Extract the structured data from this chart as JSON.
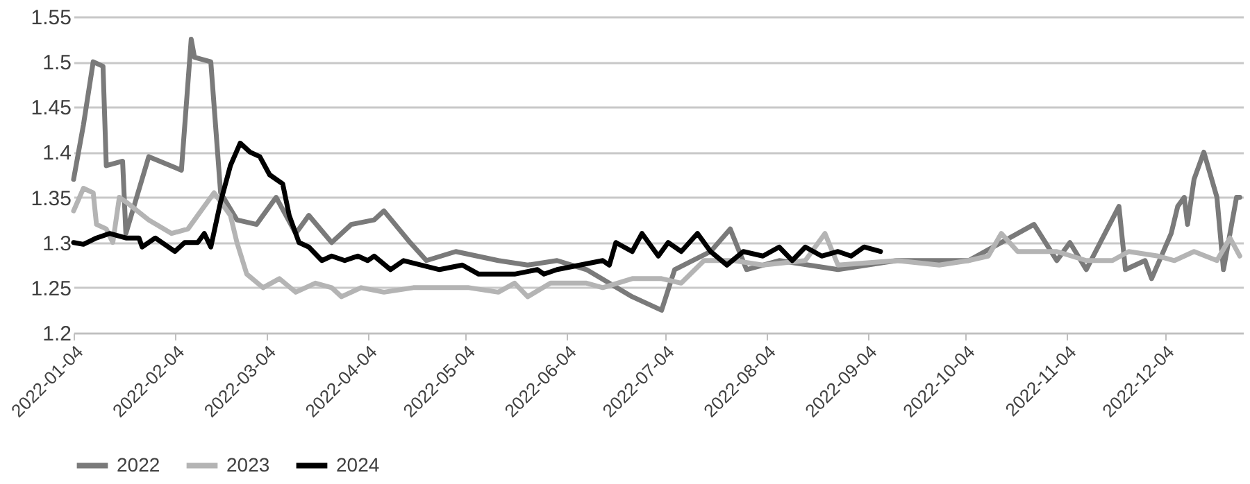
{
  "chart_data": {
    "type": "line",
    "xlim": [
      "2022-01-04",
      "2022-12-28"
    ],
    "xticks": [
      "2022-01-04",
      "2022-02-04",
      "2022-03-04",
      "2022-04-04",
      "2022-05-04",
      "2022-06-04",
      "2022-07-04",
      "2022-08-04",
      "2022-09-04",
      "2022-10-04",
      "2022-11-04",
      "2022-12-04"
    ],
    "ylim": [
      1.2,
      1.55
    ],
    "yticks": [
      1.2,
      1.25,
      1.3,
      1.35,
      1.4,
      1.45,
      1.5,
      1.55
    ],
    "grid": "y",
    "legend": "bottom",
    "marker": "none",
    "line_style": "solid",
    "series": [
      {
        "name": "2022",
        "color": "#7a7a7a",
        "x": [
          "2022-01-04",
          "2022-01-07",
          "2022-01-10",
          "2022-01-13",
          "2022-01-14",
          "2022-01-19",
          "2022-01-20",
          "2022-01-27",
          "2022-02-06",
          "2022-02-09",
          "2022-02-10",
          "2022-02-15",
          "2022-02-18",
          "2022-02-23",
          "2022-03-01",
          "2022-03-07",
          "2022-03-13",
          "2022-03-17",
          "2022-03-24",
          "2022-03-30",
          "2022-04-06",
          "2022-04-09",
          "2022-04-17",
          "2022-04-22",
          "2022-05-01",
          "2022-05-14",
          "2022-05-23",
          "2022-06-01",
          "2022-06-10",
          "2022-06-24",
          "2022-07-03",
          "2022-07-07",
          "2022-07-18",
          "2022-07-24",
          "2022-07-29",
          "2022-08-08",
          "2022-08-26",
          "2022-09-13",
          "2022-10-05",
          "2022-10-25",
          "2022-11-01",
          "2022-11-05",
          "2022-11-10",
          "2022-11-20",
          "2022-11-22",
          "2022-11-28",
          "2022-11-30",
          "2022-12-06",
          "2022-12-08",
          "2022-12-10",
          "2022-12-11",
          "2022-12-13",
          "2022-12-16",
          "2022-12-20",
          "2022-12-22",
          "2022-12-26",
          "2022-12-27"
        ],
        "values": [
          1.37,
          1.43,
          1.5,
          1.495,
          1.385,
          1.39,
          1.31,
          1.395,
          1.38,
          1.525,
          1.505,
          1.5,
          1.355,
          1.325,
          1.32,
          1.35,
          1.31,
          1.33,
          1.3,
          1.32,
          1.325,
          1.335,
          1.3,
          1.28,
          1.29,
          1.28,
          1.275,
          1.28,
          1.27,
          1.24,
          1.225,
          1.27,
          1.29,
          1.315,
          1.27,
          1.28,
          1.27,
          1.28,
          1.28,
          1.32,
          1.28,
          1.3,
          1.27,
          1.34,
          1.27,
          1.28,
          1.26,
          1.31,
          1.34,
          1.35,
          1.32,
          1.37,
          1.4,
          1.35,
          1.27,
          1.35,
          1.35
        ]
      },
      {
        "name": "2023",
        "color": "#b4b4b4",
        "x": [
          "2022-01-04",
          "2022-01-07",
          "2022-01-10",
          "2022-01-11",
          "2022-01-14",
          "2022-01-16",
          "2022-01-18",
          "2022-01-20",
          "2022-01-27",
          "2022-02-03",
          "2022-02-08",
          "2022-02-11",
          "2022-02-16",
          "2022-02-21",
          "2022-02-23",
          "2022-02-26",
          "2022-03-03",
          "2022-03-08",
          "2022-03-13",
          "2022-03-19",
          "2022-03-24",
          "2022-03-27",
          "2022-04-02",
          "2022-04-09",
          "2022-04-18",
          "2022-04-22",
          "2022-05-05",
          "2022-05-14",
          "2022-05-19",
          "2022-05-23",
          "2022-05-30",
          "2022-06-10",
          "2022-06-15",
          "2022-06-24",
          "2022-07-03",
          "2022-07-09",
          "2022-07-16",
          "2022-07-25",
          "2022-08-03",
          "2022-08-16",
          "2022-08-22",
          "2022-08-26",
          "2022-09-13",
          "2022-09-26",
          "2022-10-05",
          "2022-10-11",
          "2022-10-15",
          "2022-10-20",
          "2022-11-01",
          "2022-11-10",
          "2022-11-18",
          "2022-11-23",
          "2022-12-02",
          "2022-12-07",
          "2022-12-13",
          "2022-12-20",
          "2022-12-24",
          "2022-12-27"
        ],
        "values": [
          1.335,
          1.36,
          1.355,
          1.32,
          1.315,
          1.3,
          1.35,
          1.345,
          1.325,
          1.31,
          1.315,
          1.33,
          1.355,
          1.33,
          1.3,
          1.265,
          1.25,
          1.26,
          1.245,
          1.255,
          1.25,
          1.24,
          1.25,
          1.245,
          1.25,
          1.25,
          1.25,
          1.245,
          1.255,
          1.24,
          1.255,
          1.255,
          1.25,
          1.26,
          1.26,
          1.255,
          1.28,
          1.28,
          1.275,
          1.28,
          1.31,
          1.275,
          1.28,
          1.275,
          1.28,
          1.285,
          1.31,
          1.29,
          1.29,
          1.28,
          1.28,
          1.29,
          1.285,
          1.28,
          1.29,
          1.28,
          1.305,
          1.285
        ]
      },
      {
        "name": "2024",
        "color": "#000000",
        "x": [
          "2022-01-04",
          "2022-01-07",
          "2022-01-11",
          "2022-01-15",
          "2022-01-20",
          "2022-01-24",
          "2022-01-25",
          "2022-01-29",
          "2022-02-04",
          "2022-02-07",
          "2022-02-11",
          "2022-02-13",
          "2022-02-15",
          "2022-02-18",
          "2022-02-21",
          "2022-02-24",
          "2022-02-27",
          "2022-03-02",
          "2022-03-05",
          "2022-03-09",
          "2022-03-11",
          "2022-03-14",
          "2022-03-17",
          "2022-03-21",
          "2022-03-24",
          "2022-03-28",
          "2022-04-01",
          "2022-04-04",
          "2022-04-06",
          "2022-04-11",
          "2022-04-15",
          "2022-04-26",
          "2022-05-03",
          "2022-05-08",
          "2022-05-19",
          "2022-05-26",
          "2022-05-28",
          "2022-06-01",
          "2022-06-08",
          "2022-06-15",
          "2022-06-17",
          "2022-06-19",
          "2022-06-24",
          "2022-06-27",
          "2022-07-02",
          "2022-07-05",
          "2022-07-09",
          "2022-07-14",
          "2022-07-18",
          "2022-07-23",
          "2022-07-28",
          "2022-08-03",
          "2022-08-08",
          "2022-08-12",
          "2022-08-16",
          "2022-08-21",
          "2022-08-26",
          "2022-08-30",
          "2022-09-03",
          "2022-09-08"
        ],
        "values": [
          1.3,
          1.298,
          1.305,
          1.31,
          1.305,
          1.305,
          1.295,
          1.305,
          1.29,
          1.3,
          1.3,
          1.31,
          1.295,
          1.345,
          1.385,
          1.41,
          1.4,
          1.395,
          1.375,
          1.365,
          1.33,
          1.3,
          1.295,
          1.28,
          1.285,
          1.28,
          1.285,
          1.28,
          1.285,
          1.27,
          1.28,
          1.27,
          1.275,
          1.265,
          1.265,
          1.27,
          1.265,
          1.27,
          1.275,
          1.28,
          1.275,
          1.3,
          1.29,
          1.31,
          1.285,
          1.3,
          1.29,
          1.31,
          1.29,
          1.275,
          1.29,
          1.285,
          1.295,
          1.28,
          1.295,
          1.285,
          1.29,
          1.285,
          1.295,
          1.29
        ]
      }
    ]
  }
}
